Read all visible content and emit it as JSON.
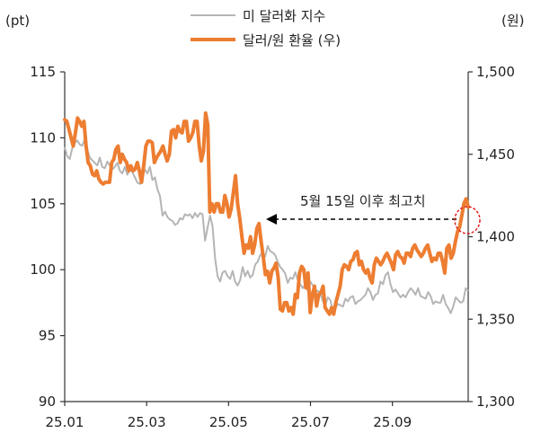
{
  "chart_data": {
    "type": "line",
    "x_tick_labels": [
      "25.01",
      "25.03",
      "25.05",
      "25.07",
      "25.09"
    ],
    "left_axis": {
      "unit": "(pt)",
      "ylim": [
        90,
        115
      ],
      "ticks": [
        90,
        95,
        100,
        105,
        110,
        115
      ]
    },
    "right_axis": {
      "unit": "(원)",
      "ylim": [
        1300,
        1500
      ],
      "ticks": [
        "1,300",
        "1,350",
        "1,400",
        "1,450",
        "1,500"
      ]
    },
    "legend_position": "top-center",
    "grid": false,
    "annotation": "5월 15일 이후 최고치",
    "series": [
      {
        "name": "미 달러화 지수",
        "axis": "left",
        "color": "#b5b5b5",
        "values": [
          109.3,
          108.6,
          108.4,
          109.2,
          109.6,
          109.8,
          109.5,
          109.4,
          109.9,
          109.1,
          108.5,
          108.3,
          108.1,
          107.9,
          108.5,
          107.8,
          107.7,
          108.2,
          107.9,
          107.6,
          107.8,
          108.1,
          107.5,
          107.3,
          107.8,
          107.2,
          107.6,
          107.4,
          107.0,
          106.6,
          106.5,
          107.1,
          107.6,
          107.3,
          107.8,
          106.8,
          107.0,
          106.1,
          105.6,
          104.1,
          104.4,
          104.0,
          103.8,
          103.7,
          103.4,
          103.5,
          103.9,
          103.8,
          104.2,
          104.1,
          104.2,
          103.9,
          104.3,
          104.0,
          104.3,
          104.2,
          102.2,
          103.2,
          104.1,
          103.3,
          100.9,
          99.5,
          99.1,
          99.8,
          99.9,
          99.5,
          99.3,
          99.9,
          99.1,
          98.8,
          99.2,
          100.2,
          99.5,
          99.9,
          99.4,
          99.6,
          100.4,
          100.6,
          101.1,
          101.3,
          101.0,
          101.8,
          101.4,
          101.3,
          101.1,
          100.6,
          100.2,
          100.0,
          99.7,
          99.0,
          99.4,
          99.3,
          99.8,
          99.2,
          98.9,
          98.6,
          98.9,
          98.4,
          99.1,
          98.8,
          98.3,
          98.4,
          98.2,
          97.6,
          97.3,
          97.9,
          97.7,
          96.9,
          97.1,
          97.4,
          97.3,
          97.2,
          97.8,
          97.6,
          97.9,
          98.0,
          97.4,
          97.6,
          97.7,
          97.9,
          98.1,
          98.6,
          98.3,
          97.7,
          98.1,
          98.2,
          99.1,
          98.9,
          99.6,
          99.8,
          98.9,
          98.3,
          98.5,
          98.2,
          97.9,
          98.1,
          97.9,
          98.3,
          98.6,
          98.4,
          98.1,
          98.6,
          98.0,
          97.9,
          97.8,
          98.3,
          98.0,
          97.4,
          97.6,
          97.5,
          97.5,
          98.1,
          97.4,
          97.1,
          96.7,
          97.2,
          97.9,
          97.7,
          97.5,
          97.6,
          98.6,
          98.4
        ]
      },
      {
        "name": "달러/원 환율 (우)",
        "axis": "right",
        "color": "#ed7d31",
        "values": [
          1471,
          1470,
          1465,
          1460,
          1455,
          1463,
          1472,
          1470,
          1467,
          1470,
          1455,
          1445,
          1443,
          1438,
          1437,
          1440,
          1435,
          1433,
          1432,
          1433,
          1433,
          1433,
          1445,
          1447,
          1453,
          1455,
          1445,
          1450,
          1447,
          1445,
          1440,
          1443,
          1440,
          1441,
          1445,
          1440,
          1433,
          1443,
          1455,
          1458,
          1458,
          1457,
          1445,
          1448,
          1450,
          1452,
          1455,
          1450,
          1446,
          1450,
          1464,
          1465,
          1460,
          1467,
          1464,
          1463,
          1470,
          1470,
          1458,
          1460,
          1463,
          1470,
          1470,
          1455,
          1446,
          1452,
          1475,
          1468,
          1415,
          1420,
          1415,
          1420,
          1420,
          1415,
          1415,
          1425,
          1420,
          1412,
          1417,
          1427,
          1437,
          1420,
          1411,
          1400,
          1390,
          1395,
          1393,
          1400,
          1390,
          1395,
          1405,
          1408,
          1397,
          1388,
          1377,
          1379,
          1372,
          1379,
          1381,
          1384,
          1375,
          1356,
          1355,
          1360,
          1360,
          1355,
          1357,
          1353,
          1365,
          1363,
          1378,
          1382,
          1380,
          1369,
          1378,
          1354,
          1365,
          1370,
          1358,
          1365,
          1366,
          1370,
          1357,
          1355,
          1353,
          1357,
          1353,
          1360,
          1365,
          1370,
          1380,
          1383,
          1382,
          1380,
          1385,
          1386,
          1390,
          1391,
          1383,
          1385,
          1380,
          1378,
          1380,
          1375,
          1372,
          1383,
          1387,
          1385,
          1383,
          1385,
          1388,
          1390,
          1387,
          1384,
          1380,
          1389,
          1391,
          1388,
          1387,
          1384,
          1390,
          1390,
          1388,
          1393,
          1395,
          1392,
          1390,
          1388,
          1390,
          1393,
          1395,
          1390,
          1385,
          1387,
          1386,
          1390,
          1390,
          1385,
          1378,
          1393,
          1395,
          1387,
          1390,
          1397,
          1403,
          1406,
          1413,
          1420,
          1423,
          1418
        ]
      }
    ]
  }
}
